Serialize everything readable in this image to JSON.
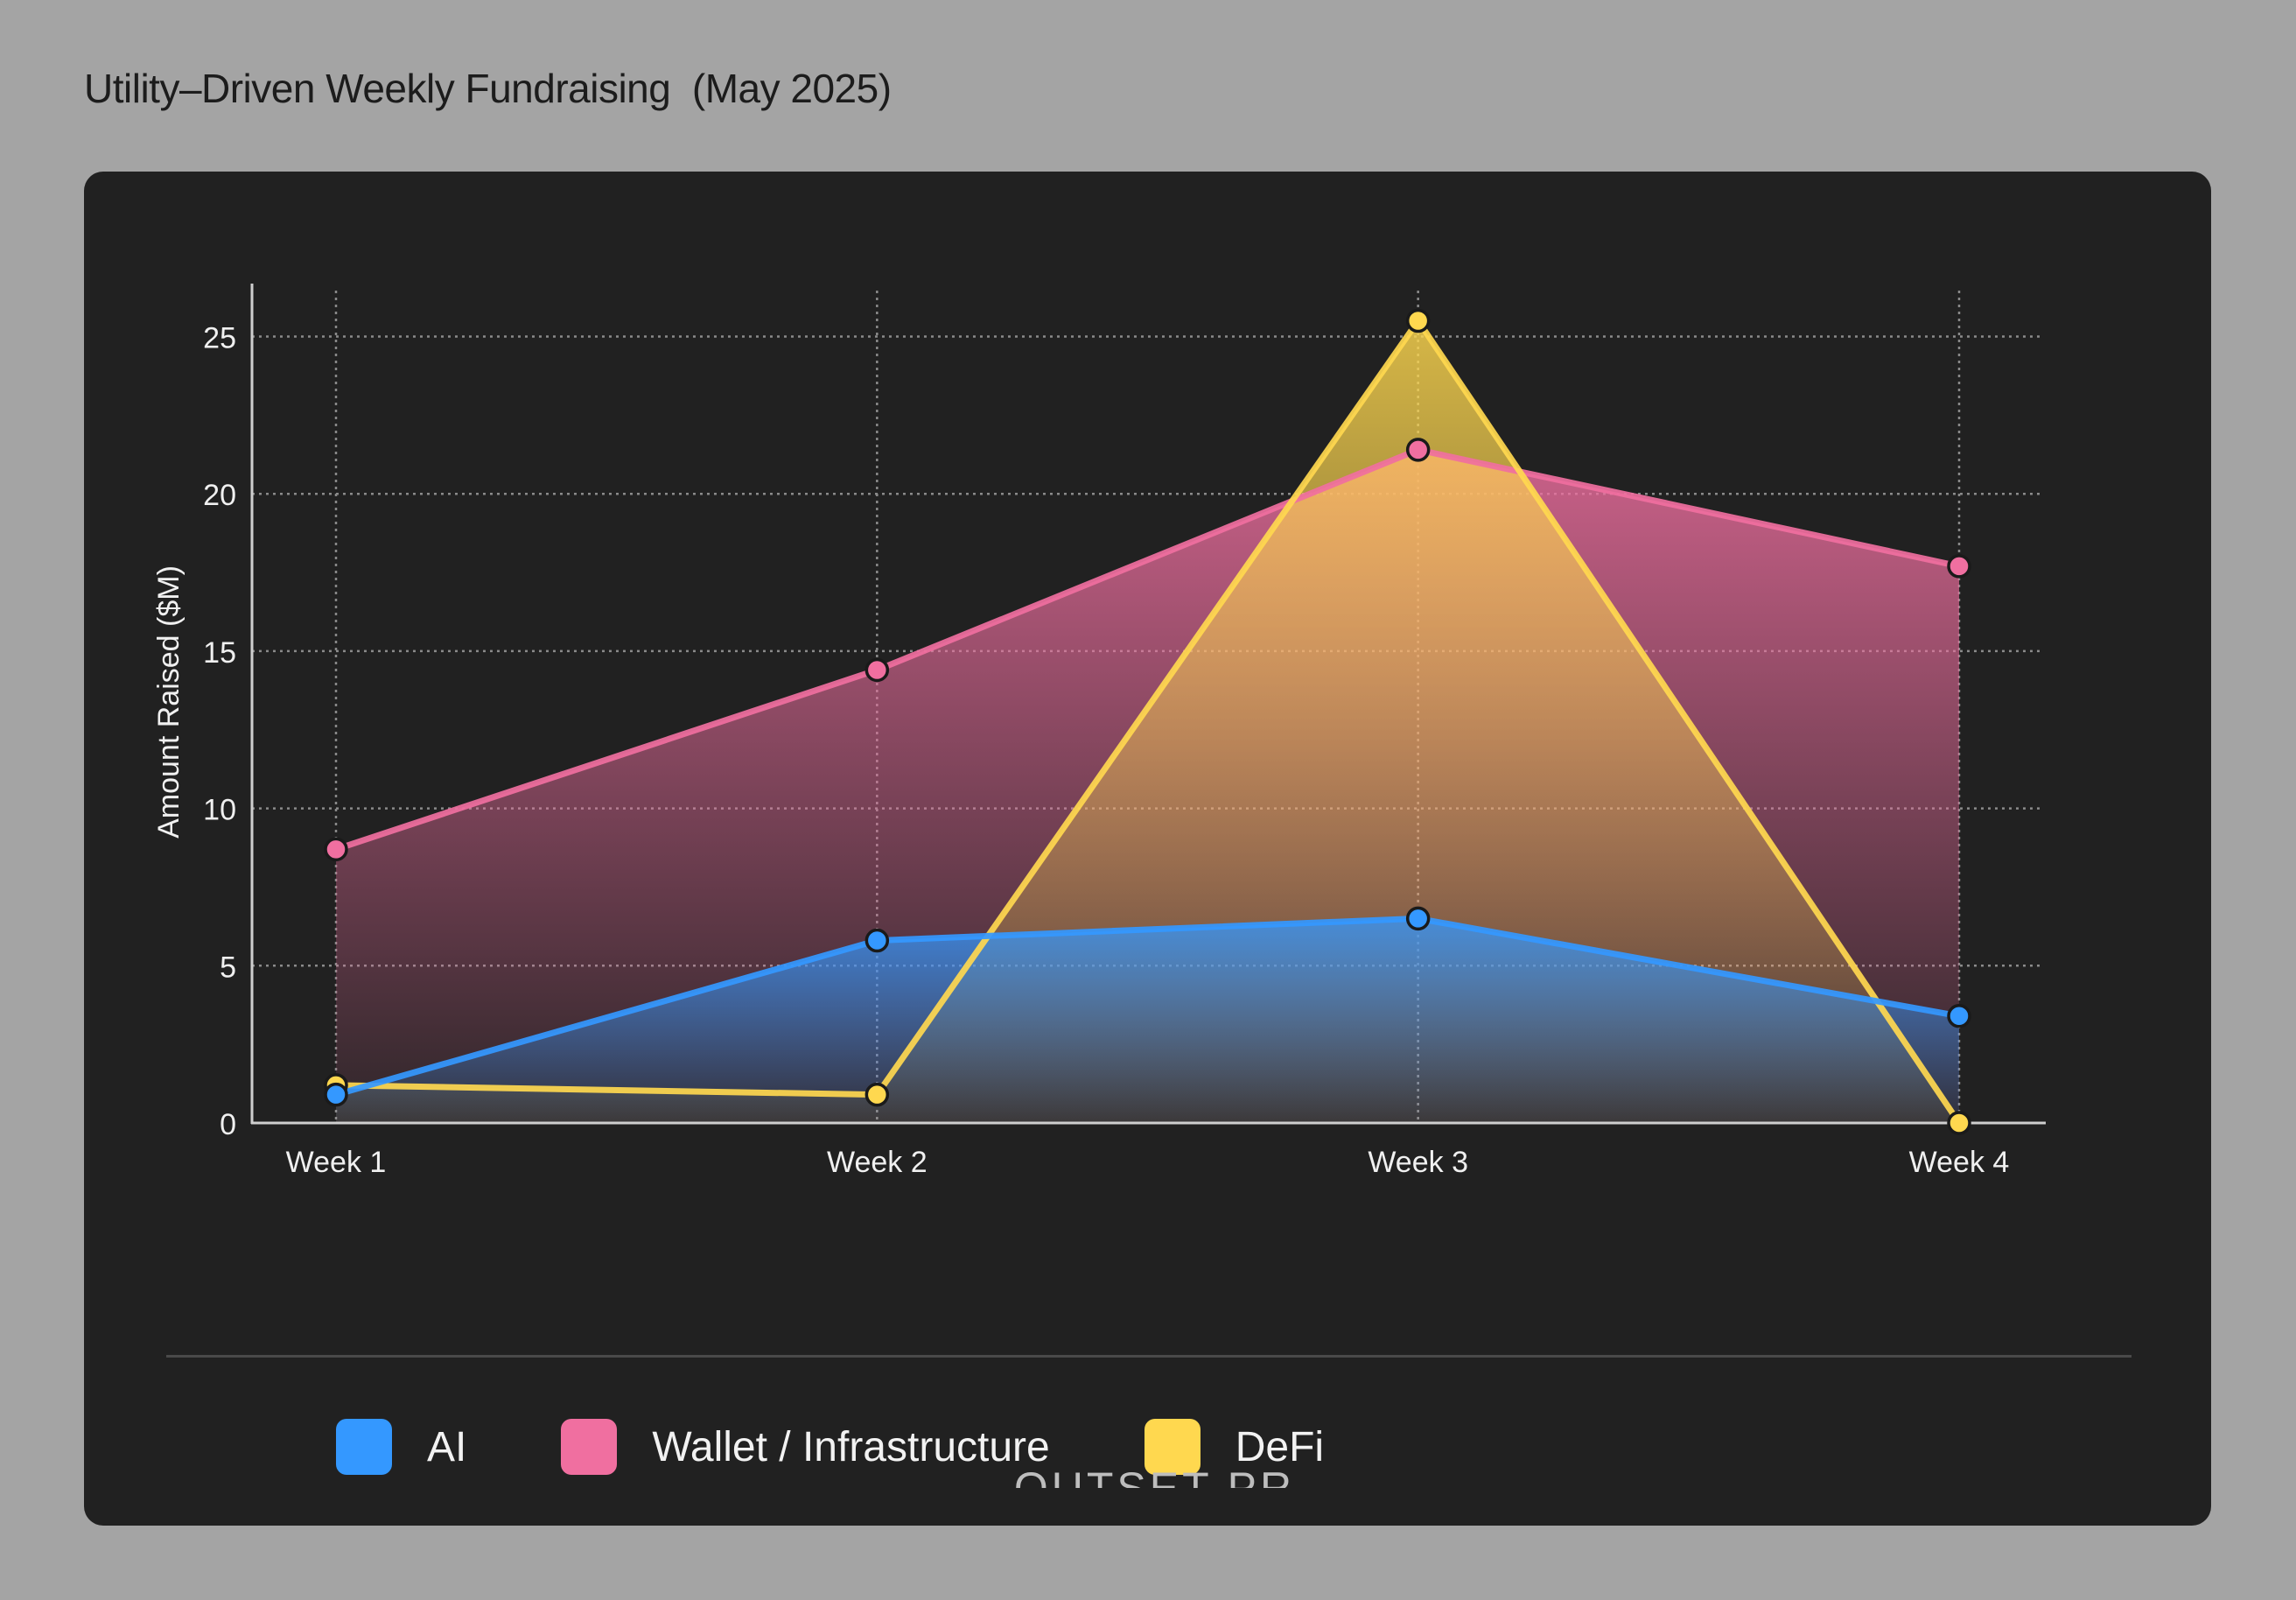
{
  "page": {
    "title": "Utility–Driven Weekly Fundraising  (May 2025)"
  },
  "brand": {
    "text": "OUTSET PR"
  },
  "colors": {
    "background": "#a4a4a4",
    "card": "#212121",
    "grid": "#8a8a8a",
    "axis": "#cfcfcf"
  },
  "chart_data": {
    "type": "area",
    "title": "Utility–Driven Weekly Fundraising  (May 2025)",
    "xlabel": "",
    "ylabel": "Amount Raised ($M)",
    "categories": [
      "Week 1",
      "Week 2",
      "Week 3",
      "Week 4"
    ],
    "ylim": [
      0,
      26.5
    ],
    "yticks": [
      0,
      5,
      10,
      15,
      20,
      25
    ],
    "grid": true,
    "legend_position": "bottom",
    "series": [
      {
        "name": "Wallet / Infrastructure",
        "color": "#f06fa0",
        "values": [
          8.7,
          14.4,
          21.4,
          17.7
        ]
      },
      {
        "name": "DeFi",
        "color": "#ffd84f",
        "values": [
          1.2,
          0.9,
          25.5,
          0.0
        ]
      },
      {
        "name": "AI",
        "color": "#3498ff",
        "values": [
          0.9,
          5.8,
          6.5,
          3.4
        ]
      }
    ],
    "legend_order": [
      "AI",
      "Wallet / Infrastructure",
      "DeFi"
    ]
  }
}
